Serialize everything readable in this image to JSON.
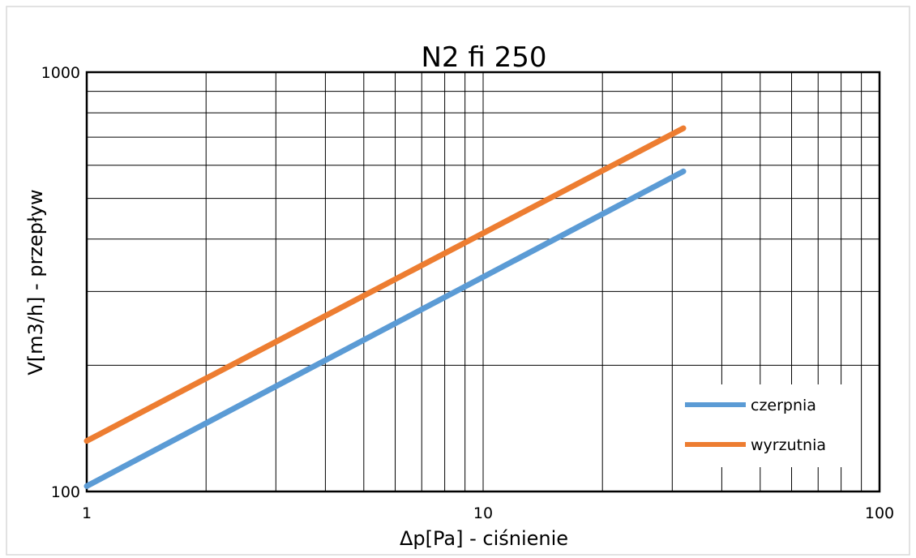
{
  "chart_data": {
    "type": "line",
    "title": "N2 fi 250",
    "xlabel": "Δp[Pa] - ciśnienie",
    "ylabel": "V[m3/h] - przepływ",
    "xscale": "log",
    "yscale": "log",
    "xlim": [
      1,
      100
    ],
    "ylim": [
      100,
      1000
    ],
    "xticks": [
      1,
      10,
      100
    ],
    "xtick_labels": [
      "1",
      "10",
      "100"
    ],
    "yticks": [
      100,
      1000
    ],
    "ytick_labels": [
      "100",
      "1000"
    ],
    "grid": true,
    "legend_position": "bottom-right",
    "series": [
      {
        "name": "czerpnia",
        "color": "#5b9bd5",
        "x": [
          1,
          32
        ],
        "y": [
          103,
          580
        ]
      },
      {
        "name": "wyrzutnia",
        "color": "#ed7d31",
        "x": [
          1,
          32
        ],
        "y": [
          132,
          735
        ]
      }
    ]
  }
}
